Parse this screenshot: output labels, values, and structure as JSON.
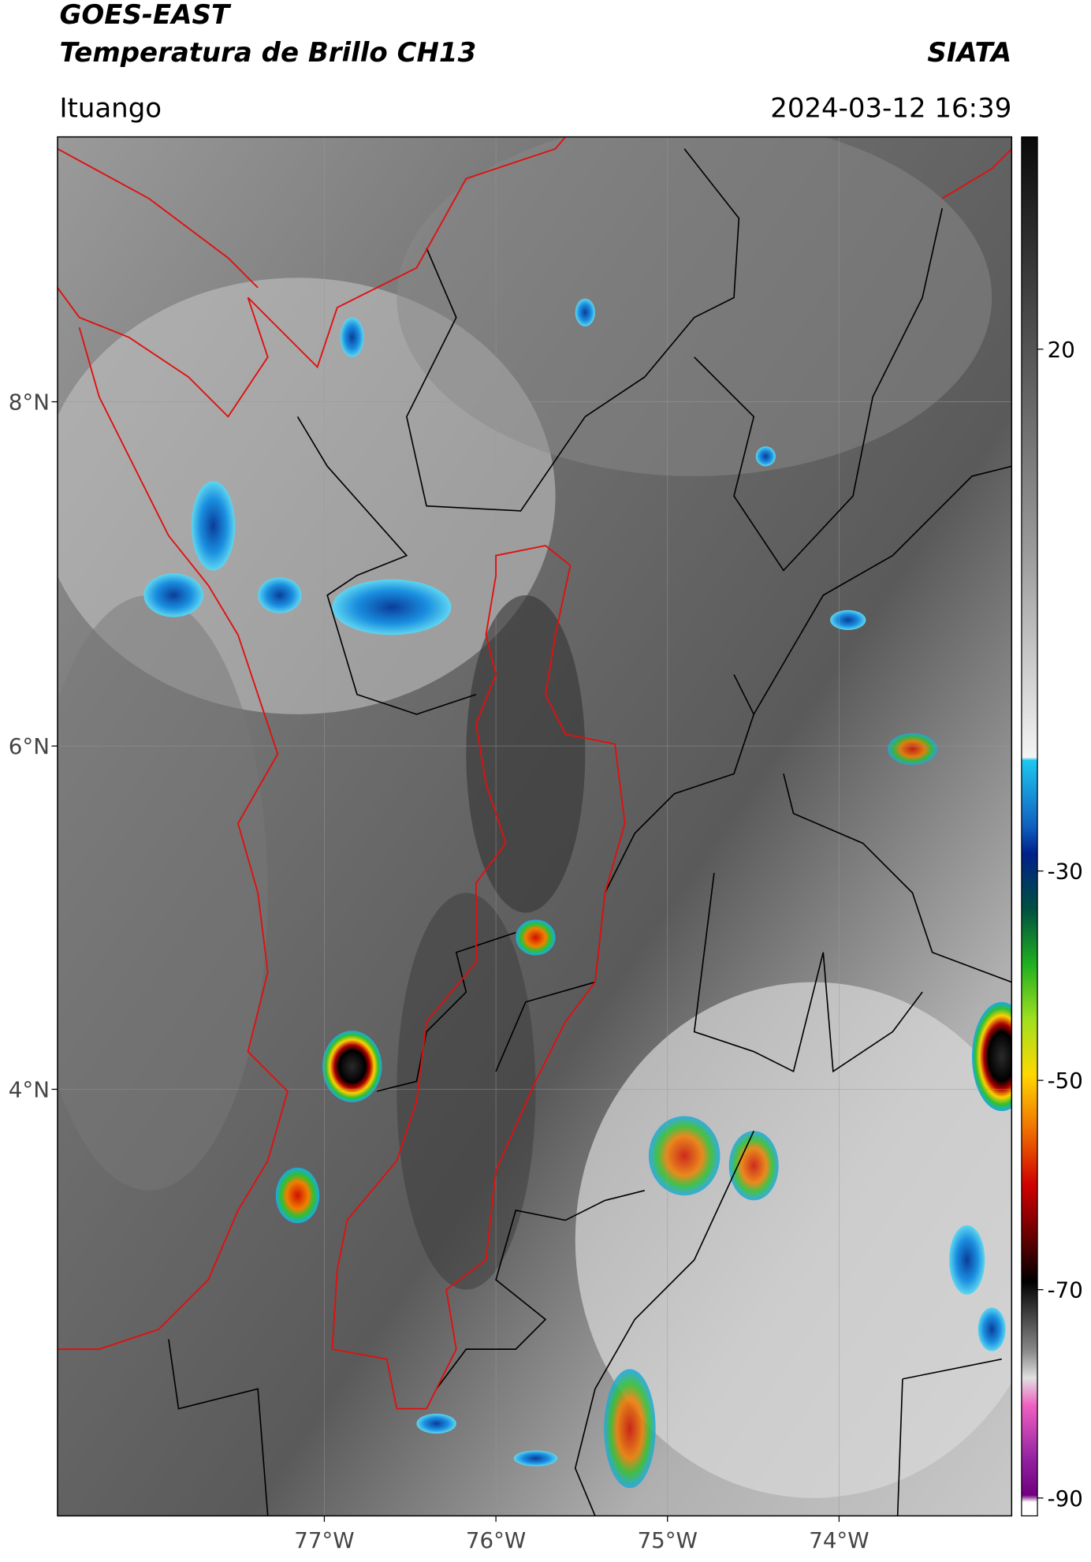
{
  "header": {
    "satellite": "GOES-EAST",
    "product": "Temperatura de Brillo CH13",
    "organization": "SIATA",
    "location": "Ituango",
    "datetime": "2024-03-12 16:39"
  },
  "map": {
    "lat_ticks": [
      "8°N",
      "6°N",
      "4°N"
    ],
    "lon_ticks": [
      "77°W",
      "76°W",
      "75°W",
      "74°W"
    ]
  },
  "colorbar": {
    "ticks": [
      "20",
      "-30",
      "-50",
      "-70",
      "-90"
    ]
  }
}
